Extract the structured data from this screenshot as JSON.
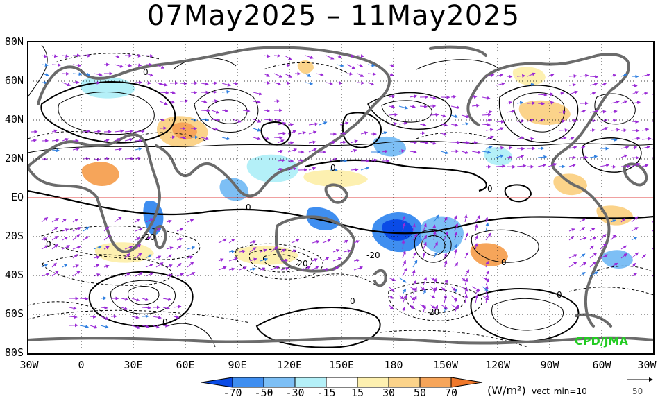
{
  "title": "07May2025 – 11May2025",
  "lat_labels": [
    "80N",
    "60N",
    "40N",
    "20N",
    "EQ",
    "20S",
    "40S",
    "60S",
    "80S"
  ],
  "lon_labels": [
    "30W",
    "0",
    "30E",
    "60E",
    "90E",
    "120E",
    "150E",
    "180",
    "150W",
    "120W",
    "90W",
    "60W",
    "30W"
  ],
  "colorbar": {
    "labels": [
      "-70",
      "-50",
      "-30",
      "-15",
      "15",
      "30",
      "50",
      "70"
    ],
    "colors": [
      "#0a4be6",
      "#3f8ef0",
      "#7dbff5",
      "#b4f0f8",
      "#ffffff",
      "#fdf0b0",
      "#fbd38a",
      "#f6a55a",
      "#f0782a"
    ],
    "unit": "(W/m²)"
  },
  "vector_legend": {
    "label": "vect_min=10",
    "reference_value": "50"
  },
  "contour_labels": [
    "0",
    "0",
    "0",
    "0",
    "0",
    "0",
    "0",
    "0",
    "0",
    "-20",
    "-20",
    "-20",
    "20"
  ],
  "credit": "CPD/JMA",
  "colors": {
    "coast": "#6b6b6b",
    "vector": "#9a2bd6",
    "vector_strong": "#2f7fe0",
    "equator": "#e04040",
    "grid": "#000000"
  }
}
